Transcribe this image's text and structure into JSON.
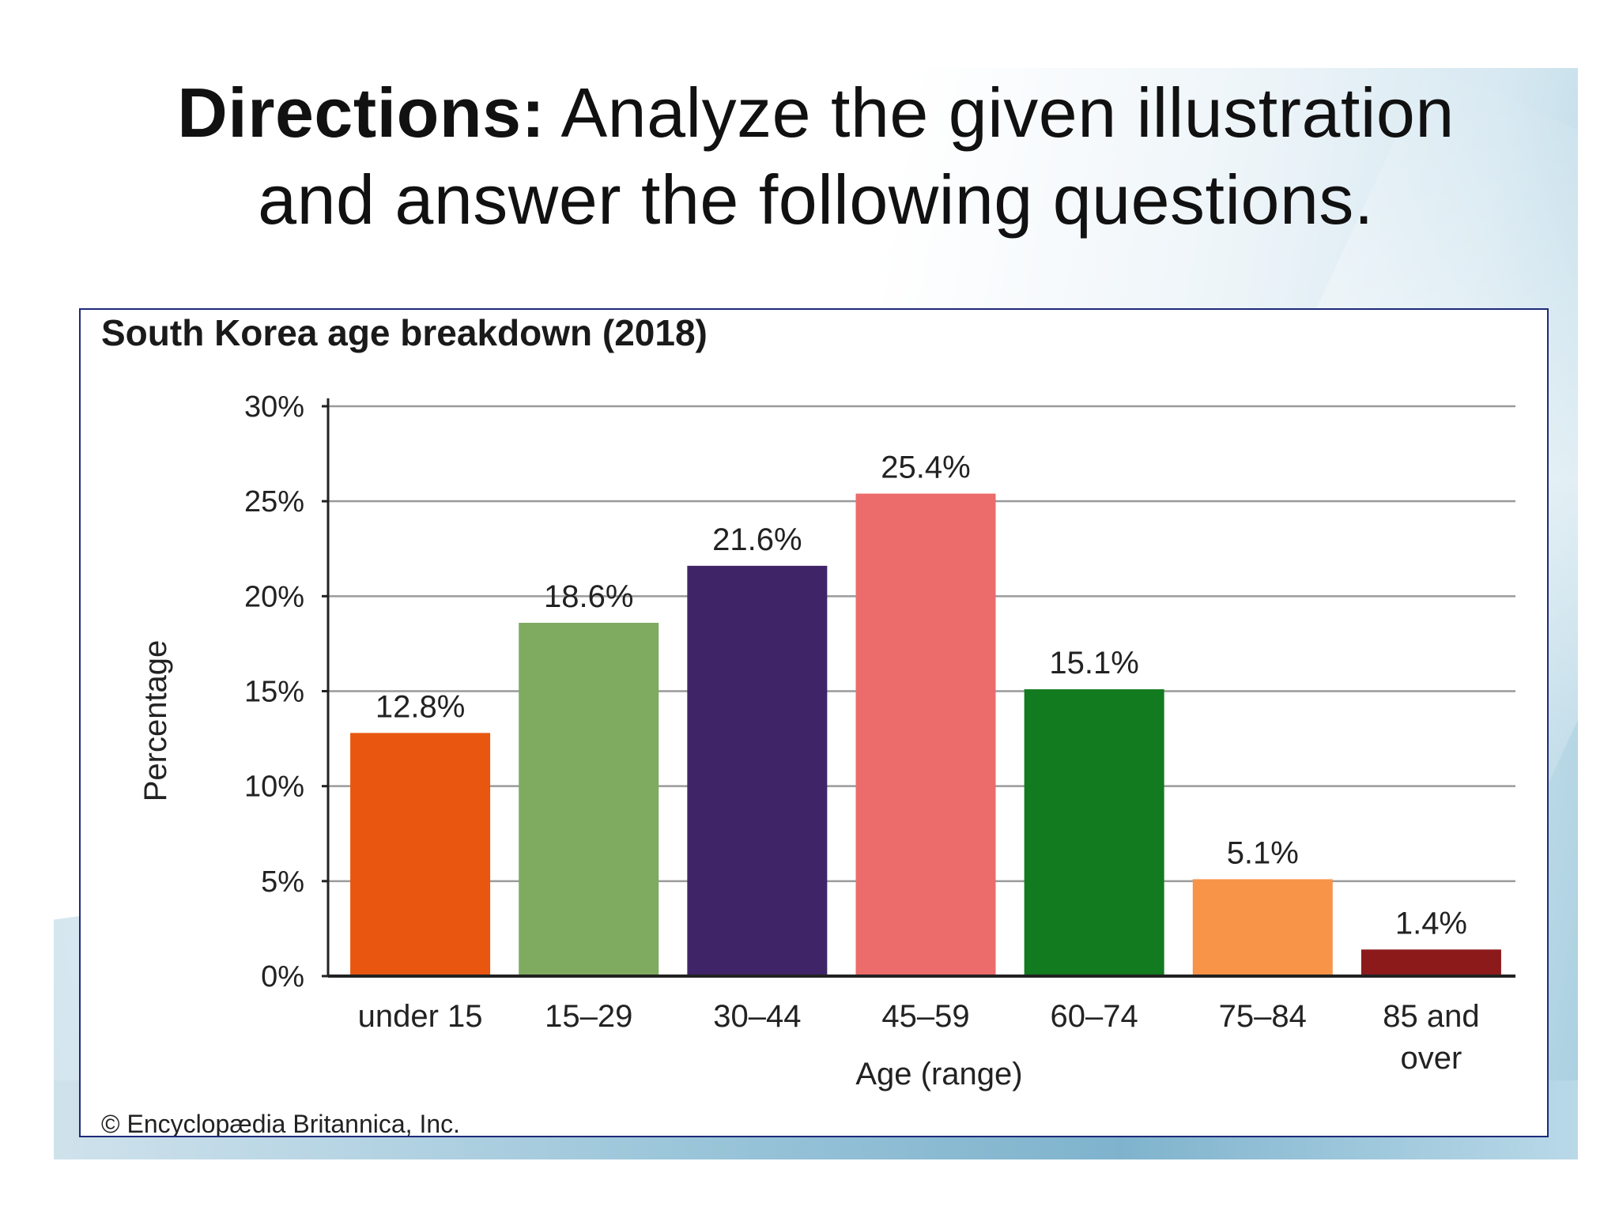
{
  "heading": {
    "bold": "Directions:",
    "line1_rest": " Analyze the given illustration",
    "line2": "and answer the following questions."
  },
  "chart_data": {
    "type": "bar",
    "title": "South Korea age breakdown (2018)",
    "xlabel": "Age (range)",
    "ylabel": "Percentage",
    "categories": [
      "under 15",
      "15–29",
      "30–44",
      "45–59",
      "60–74",
      "75–84",
      "85 and over"
    ],
    "category_lines": [
      [
        "under 15"
      ],
      [
        "15–29"
      ],
      [
        "30–44"
      ],
      [
        "45–59"
      ],
      [
        "60–74"
      ],
      [
        "75–84"
      ],
      [
        "85 and",
        "over"
      ]
    ],
    "values": [
      12.8,
      18.6,
      21.6,
      25.4,
      15.1,
      5.1,
      1.4
    ],
    "value_labels": [
      "12.8%",
      "18.6%",
      "21.6%",
      "25.4%",
      "15.1%",
      "5.1%",
      "1.4%"
    ],
    "bar_colors": [
      "#e8560f",
      "#7fab61",
      "#3f2568",
      "#ec6b6b",
      "#127a1f",
      "#f79448",
      "#8c1a1a"
    ],
    "ylim": [
      0,
      30
    ],
    "yticks": [
      0,
      5,
      10,
      15,
      20,
      25,
      30
    ],
    "ytick_labels": [
      "0%",
      "5%",
      "10%",
      "15%",
      "20%",
      "25%",
      "30%"
    ],
    "grid": true,
    "legend": "none"
  },
  "credit": "© Encyclopædia Britannica, Inc."
}
